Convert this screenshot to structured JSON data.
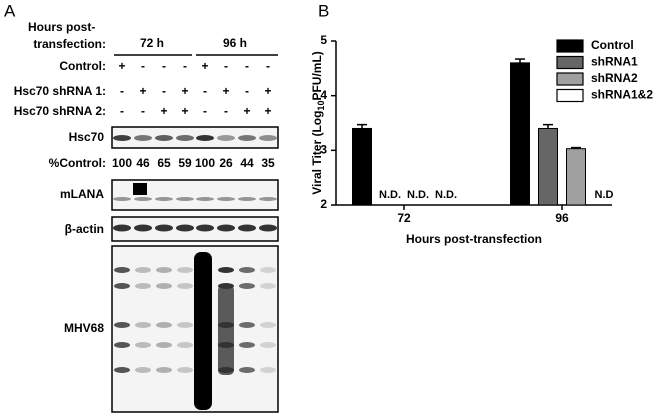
{
  "panel_a": {
    "label": "A",
    "header": [
      "Hours post-",
      "transfection:"
    ],
    "time_labels": [
      "72 h",
      "96 h"
    ],
    "conditions": [
      {
        "label": "Control:",
        "signs": [
          "+",
          "-",
          "-",
          "-",
          "+",
          "-",
          "-",
          "-"
        ]
      },
      {
        "label": "Hsc70 shRNA 1:",
        "signs": [
          "-",
          "+",
          "-",
          "+",
          "-",
          "+",
          "-",
          "+"
        ]
      },
      {
        "label": "Hsc70 shRNA 2:",
        "signs": [
          "-",
          "-",
          "+",
          "+",
          "-",
          "-",
          "+",
          "+"
        ]
      }
    ],
    "blots": [
      "Hsc70",
      "mLANA",
      "β-actin",
      "MHV68"
    ],
    "percent_control": {
      "label": "%Control:",
      "values": [
        100,
        46,
        65,
        59,
        100,
        26,
        44,
        35
      ]
    }
  },
  "chart_data": {
    "type": "bar",
    "panel_label": "B",
    "ylabel": [
      "Viral Titer (Log",
      "10",
      "PFU/mL)"
    ],
    "xlabel": "Hours post-transfection",
    "categories": [
      "72",
      "96"
    ],
    "ylim": [
      2,
      5
    ],
    "yticks": [
      2,
      3,
      4,
      5
    ],
    "legend": "upper right",
    "series": [
      {
        "name": "Control",
        "color": "#000000",
        "values": [
          3.4,
          4.6
        ],
        "errors": [
          0.07,
          0.07
        ]
      },
      {
        "name": "shRNA1",
        "color": "#666666",
        "values": [
          null,
          3.4
        ],
        "errors": [
          null,
          0.07
        ],
        "value_labels": [
          "N.D.",
          null
        ]
      },
      {
        "name": "shRNA2",
        "color": "#a0a0a0",
        "values": [
          null,
          3.03
        ],
        "errors": [
          null,
          0.02
        ],
        "value_labels": [
          "N.D.",
          null
        ]
      },
      {
        "name": "shRNA1&2",
        "color": "#ffffff",
        "values": [
          null,
          null
        ],
        "errors": [
          null,
          null
        ],
        "value_labels": [
          "N.D.",
          "N.D"
        ]
      }
    ]
  }
}
